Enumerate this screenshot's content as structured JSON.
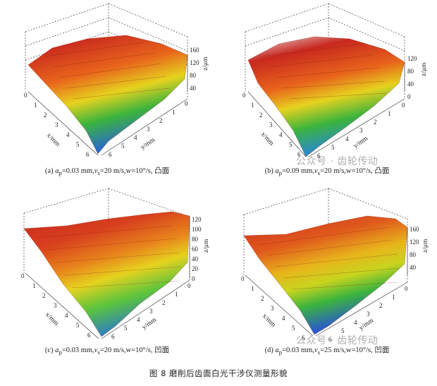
{
  "figure_caption": "图 8 磨削后齿面白光干涉仪测量形貌",
  "watermark": "公众号 · 齿轮传动",
  "panels": [
    {
      "caption": "(a) ap=0.03 mm,vs=20 m/s,w=10°/s, 凸面",
      "caption_prefix": "(a) ",
      "caption_body": "=0.03 mm,",
      "caption_vs": "=20 m/s,w=10°/s, 凸面",
      "z_ticks": [
        "160",
        "120",
        "80",
        "40"
      ],
      "x_ticks": [
        "0",
        "1",
        "2",
        "3",
        "4",
        "5",
        "6"
      ],
      "y_ticks": [
        "0",
        "1",
        "2",
        "3",
        "4",
        "5",
        "6"
      ],
      "x_label": "x/mm",
      "y_label": "y/mm",
      "z_label": "z/μm"
    },
    {
      "caption": "(b) ap=0.09 mm,vs=20 m/s,w=10°/s, 凸面",
      "caption_prefix": "(b) ",
      "caption_body": "=0.09 mm,",
      "caption_vs": "=20 m/s,w=10°/s, 凸面",
      "z_ticks": [
        "120",
        "80",
        "40",
        "0"
      ],
      "x_ticks": [
        "0",
        "1",
        "2",
        "3",
        "4",
        "5",
        "6"
      ],
      "y_ticks": [
        "0",
        "1",
        "2",
        "3",
        "4",
        "5",
        "6"
      ],
      "x_label": "x/mm",
      "y_label": "y/mm",
      "z_label": "z/μm"
    },
    {
      "caption": "(c) ap=0.03 mm,vs=20 m/s,w=10°/s, 凹面",
      "caption_prefix": "(c) ",
      "caption_body": "=0.03 mm,",
      "caption_vs": "=20 m/s,w=10°/s, 凹面",
      "z_ticks": [
        "120",
        "100",
        "80",
        "60",
        "40",
        "20",
        "0"
      ],
      "x_ticks": [
        "0",
        "1",
        "2",
        "3",
        "4",
        "5",
        "6"
      ],
      "y_ticks": [
        "0",
        "1",
        "2",
        "3",
        "4",
        "5",
        "6"
      ],
      "x_label": "x/mm",
      "y_label": "y/mm",
      "z_label": "z/μm"
    },
    {
      "caption": "(d) ap=0.03 mm,vs=25 m/s,w=10°/s, 凹面",
      "caption_prefix": "(d) ",
      "caption_body": "=0.03 mm,",
      "caption_vs": "=25 m/s,w=10°/s, 凹面",
      "z_ticks": [
        "160",
        "120",
        "80",
        "40"
      ],
      "x_ticks": [
        "0",
        "1",
        "2",
        "3",
        "4",
        "5",
        "6"
      ],
      "y_ticks": [
        "0",
        "1",
        "2",
        "3",
        "4",
        "5",
        "6"
      ],
      "x_label": "x/mm",
      "y_label": "y/mm",
      "z_label": "z/μm"
    }
  ],
  "colors": {
    "high": "#c8281e",
    "mid_high": "#e8641c",
    "mid": "#e6d21e",
    "mid_low": "#3cb43c",
    "low": "#2a8acb",
    "peak": "#e8e0e6"
  }
}
